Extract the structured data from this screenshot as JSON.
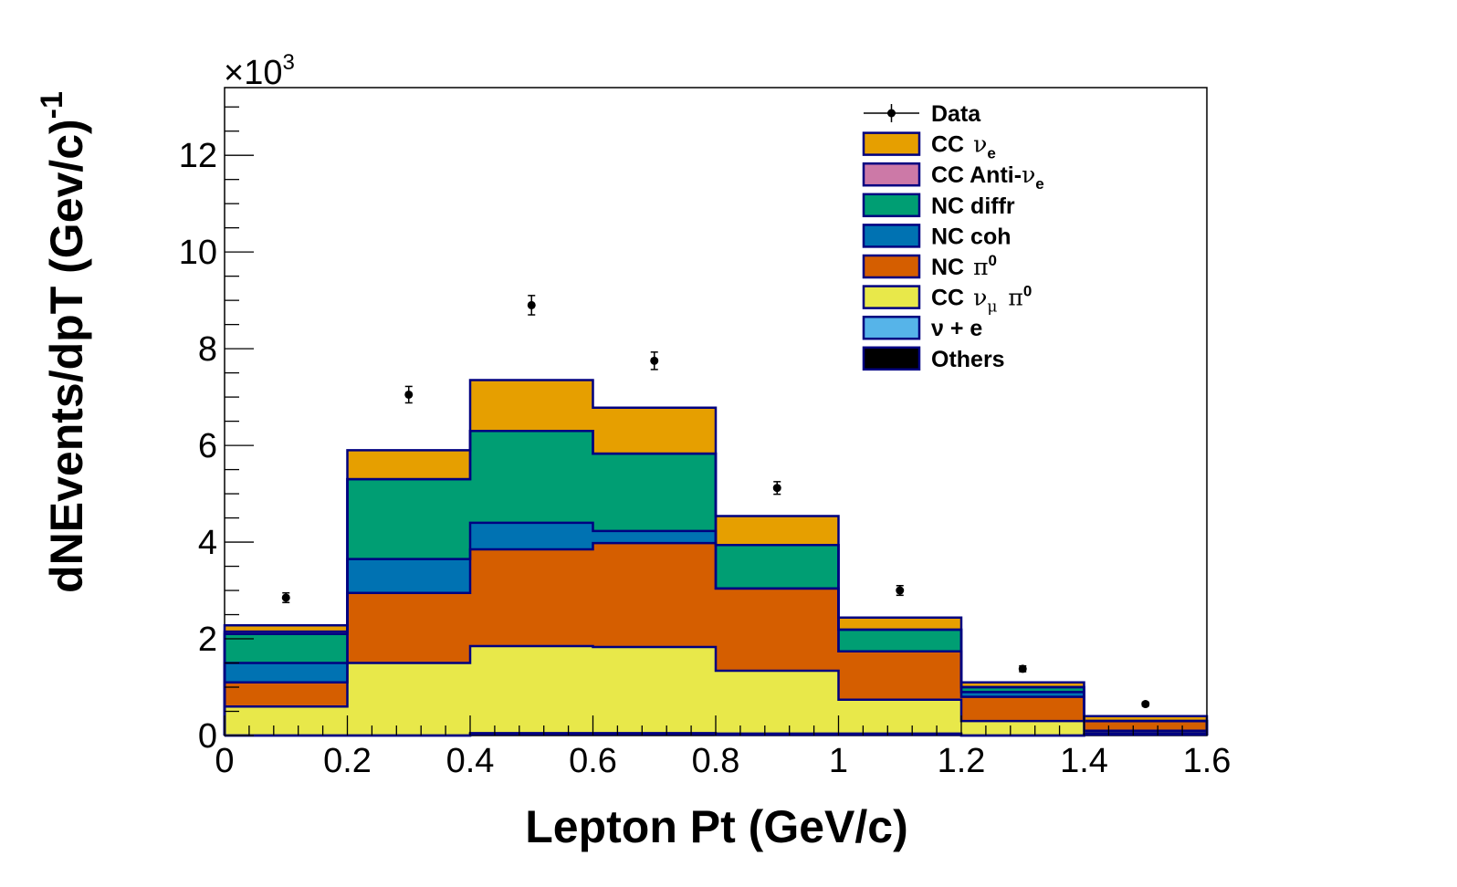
{
  "chart_data": {
    "type": "bar",
    "stacked": true,
    "title": "",
    "xlabel": "Lepton Pt (GeV/c)",
    "ylabel": "dNEvents/dpT (Gev/c)",
    "ylabel_exponent": "-1",
    "y_multiplier": "×10",
    "y_multiplier_exponent": "3",
    "xlim": [
      0,
      1.6
    ],
    "ylim": [
      0,
      13.4
    ],
    "x_ticks": [
      0,
      0.2,
      0.4,
      0.6,
      0.8,
      1,
      1.2,
      1.4,
      1.6
    ],
    "x_tick_labels": [
      "0",
      "0.2",
      "0.4",
      "0.6",
      "0.8",
      "1",
      "1.2",
      "1.4",
      "1.6"
    ],
    "y_ticks": [
      0,
      2,
      4,
      6,
      8,
      10,
      12
    ],
    "y_tick_labels": [
      "0",
      "2",
      "4",
      "6",
      "8",
      "10",
      "12"
    ],
    "bin_edges": [
      0,
      0.2,
      0.4,
      0.6,
      0.8,
      1.0,
      1.2,
      1.4,
      1.6
    ],
    "series": [
      {
        "key": "others",
        "name": "Others",
        "color": "#000000",
        "values": [
          0,
          0,
          0.03,
          0.03,
          0.02,
          0.02,
          0,
          0.02
        ]
      },
      {
        "key": "nue_scatter",
        "name": "ν + e",
        "color": "#56b4e9",
        "values": [
          0,
          0,
          0.02,
          0.02,
          0.02,
          0.02,
          0,
          0.03
        ]
      },
      {
        "key": "cc_numu_pi0",
        "name": "CC νμ π0",
        "color": "#e8e84a",
        "values": [
          0.6,
          1.5,
          1.8,
          1.78,
          1.3,
          0.7,
          0.3,
          0.05
        ]
      },
      {
        "key": "nc_pi0",
        "name": "NC π0",
        "color": "#d55e00",
        "values": [
          0.5,
          1.45,
          2.0,
          2.15,
          1.7,
          1.0,
          0.5,
          0.2
        ]
      },
      {
        "key": "nc_coh",
        "name": "NC coh",
        "color": "#0072b2",
        "values": [
          0.4,
          0.7,
          0.55,
          0.25,
          0.0,
          0.0,
          0.1,
          0.0
        ]
      },
      {
        "key": "nc_diffr",
        "name": "NC diffr",
        "color": "#009e73",
        "values": [
          0.6,
          1.65,
          1.9,
          1.6,
          0.9,
          0.45,
          0.1,
          0.0
        ]
      },
      {
        "key": "cc_anti_nue",
        "name": "CC Anti-νe",
        "color": "#cc79a7",
        "values": [
          0.05,
          0.0,
          0.0,
          0.0,
          0.0,
          0.0,
          0.0,
          0.0
        ]
      },
      {
        "key": "cc_nue",
        "name": "CC νe",
        "color": "#e69f00",
        "values": [
          0.13,
          0.6,
          1.05,
          0.95,
          0.6,
          0.25,
          0.1,
          0.1
        ]
      }
    ],
    "data_points": {
      "name": "Data",
      "x": [
        0.1,
        0.3,
        0.5,
        0.7,
        0.9,
        1.1,
        1.3,
        1.5
      ],
      "y": [
        2.85,
        7.05,
        8.9,
        7.75,
        5.12,
        3.0,
        1.38,
        0.65
      ],
      "yerr": [
        0.1,
        0.17,
        0.2,
        0.18,
        0.13,
        0.1,
        0.06,
        0.04
      ]
    },
    "legend": {
      "position": "top-right",
      "entries": [
        {
          "label": "Data",
          "marker": "point",
          "color": "#000000"
        },
        {
          "label": "CC",
          "greek": "ν",
          "sub": "e",
          "color": "#e69f00"
        },
        {
          "label": "CC Anti-",
          "greek": "ν",
          "sub": "e",
          "color": "#cc79a7"
        },
        {
          "label": "NC diffr",
          "color": "#009e73"
        },
        {
          "label": "NC coh",
          "color": "#0072b2"
        },
        {
          "label": "NC",
          "greek": "π",
          "sup": "0",
          "color": "#d55e00"
        },
        {
          "label": "CC",
          "greek": "ν",
          "sub": "μ",
          "greek2": "π",
          "sup": "0",
          "color": "#e8e84a"
        },
        {
          "label": "ν + e",
          "color": "#56b4e9"
        },
        {
          "label": "Others",
          "color": "#000000"
        }
      ]
    },
    "outline_color": "#000080"
  }
}
